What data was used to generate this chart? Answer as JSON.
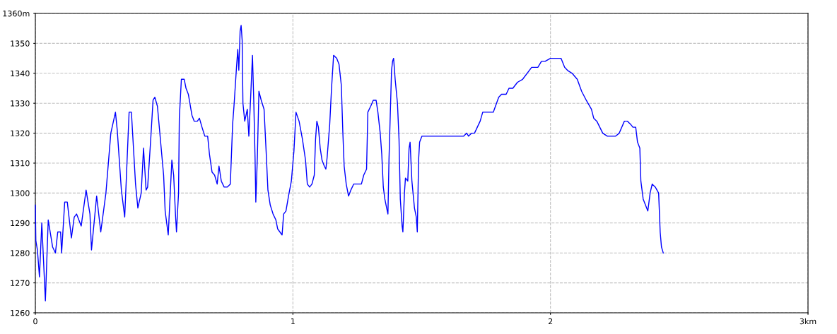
{
  "chart_data": {
    "type": "line",
    "xlim": [
      0,
      3
    ],
    "ylim": [
      1260,
      1360
    ],
    "xticks": [
      0,
      1,
      2,
      {
        "value": 3,
        "label": "3km"
      }
    ],
    "yticks": [
      1260,
      1270,
      1280,
      1290,
      1300,
      1310,
      1320,
      1330,
      1340,
      1350,
      {
        "value": 1360,
        "label": "1360m"
      }
    ],
    "grid": true,
    "marker": "none",
    "line_style": "solid",
    "series": [
      {
        "color": "#0000ff",
        "x": [
          0,
          0.002,
          0.008,
          0.016,
          0.025,
          0.039,
          0.05,
          0.067,
          0.078,
          0.087,
          0.098,
          0.102,
          0.114,
          0.124,
          0.14,
          0.151,
          0.16,
          0.178,
          0.197,
          0.212,
          0.218,
          0.238,
          0.254,
          0.274,
          0.293,
          0.311,
          0.318,
          0.334,
          0.347,
          0.364,
          0.373,
          0.389,
          0.398,
          0.411,
          0.42,
          0.43,
          0.436,
          0.448,
          0.457,
          0.464,
          0.474,
          0.498,
          0.504,
          0.516,
          0.53,
          0.537,
          0.544,
          0.548,
          0.556,
          0.559,
          0.567,
          0.578,
          0.585,
          0.594,
          0.608,
          0.617,
          0.629,
          0.637,
          0.647,
          0.658,
          0.669,
          0.676,
          0.686,
          0.696,
          0.706,
          0.713,
          0.722,
          0.733,
          0.745,
          0.757,
          0.766,
          0.772,
          0.781,
          0.786,
          0.79,
          0.795,
          0.799,
          0.803,
          0.806,
          0.813,
          0.818,
          0.823,
          0.829,
          0.836,
          0.843,
          0.848,
          0.853,
          0.856,
          0.862,
          0.868,
          0.877,
          0.888,
          0.896,
          0.903,
          0.912,
          0.923,
          0.934,
          0.941,
          0.958,
          0.964,
          0.973,
          0.983,
          0.994,
          1.004,
          1.012,
          1.024,
          1.037,
          1.049,
          1.056,
          1.065,
          1.074,
          1.083,
          1.088,
          1.093,
          1.099,
          1.106,
          1.113,
          1.122,
          1.128,
          1.133,
          1.143,
          1.15,
          1.158,
          1.17,
          1.179,
          1.188,
          1.194,
          1.199,
          1.207,
          1.216,
          1.225,
          1.236,
          1.266,
          1.275,
          1.286,
          1.291,
          1.302,
          1.312,
          1.323,
          1.33,
          1.339,
          1.345,
          1.351,
          1.357,
          1.364,
          1.369,
          1.373,
          1.378,
          1.383,
          1.387,
          1.391,
          1.397,
          1.406,
          1.412,
          1.417,
          1.424,
          1.427,
          1.433,
          1.437,
          1.446,
          1.451,
          1.455,
          1.462,
          1.472,
          1.479,
          1.483,
          1.488,
          1.492,
          1.501,
          1.513,
          1.663,
          1.675,
          1.682,
          1.694,
          1.705,
          1.727,
          1.737,
          1.778,
          1.799,
          1.81,
          1.828,
          1.839,
          1.854,
          1.872,
          1.892,
          1.927,
          1.938,
          1.951,
          1.965,
          1.979,
          2.0,
          2.013,
          2.027,
          2.041,
          2.055,
          2.066,
          2.084,
          2.104,
          2.121,
          2.139,
          2.159,
          2.168,
          2.18,
          2.203,
          2.221,
          2.253,
          2.267,
          2.287,
          2.299,
          2.311,
          2.32,
          2.331,
          2.338,
          2.347,
          2.351,
          2.36,
          2.378,
          2.387,
          2.395,
          2.407,
          2.42,
          2.426,
          2.431,
          2.438
        ],
        "values": [
          1296,
          1284,
          1281,
          1272,
          1290,
          1264,
          1291,
          1282,
          1280,
          1287,
          1287,
          1280,
          1297,
          1297,
          1285,
          1292,
          1293,
          1289,
          1301,
          1293,
          1281,
          1299,
          1287,
          1300,
          1320,
          1327,
          1321,
          1301,
          1292,
          1327,
          1327,
          1303,
          1295,
          1300,
          1315,
          1301,
          1302,
          1318,
          1331,
          1332,
          1329,
          1306,
          1294,
          1286,
          1311,
          1306,
          1293,
          1287,
          1300,
          1325,
          1338,
          1338,
          1335,
          1333,
          1326,
          1324,
          1324,
          1325,
          1322,
          1319,
          1319,
          1313,
          1307,
          1306,
          1303,
          1309,
          1304,
          1302,
          1302,
          1303,
          1323,
          1330,
          1342,
          1348,
          1341,
          1354,
          1356,
          1351,
          1330,
          1324,
          1326,
          1328,
          1319,
          1332,
          1346,
          1331,
          1312,
          1297,
          1312,
          1334,
          1331,
          1328,
          1314,
          1301,
          1296,
          1293,
          1291,
          1288,
          1286,
          1293,
          1294,
          1299,
          1304,
          1314,
          1327,
          1324,
          1318,
          1311,
          1303,
          1302,
          1303,
          1306,
          1318,
          1324,
          1322,
          1315,
          1311,
          1309,
          1308,
          1312,
          1323,
          1335,
          1346,
          1345,
          1343,
          1336,
          1320,
          1309,
          1303,
          1299,
          1301,
          1303,
          1303,
          1306,
          1308,
          1327,
          1329,
          1331,
          1331,
          1327,
          1320,
          1313,
          1302,
          1298,
          1295,
          1293,
          1311,
          1326,
          1341,
          1344,
          1345,
          1338,
          1330,
          1318,
          1298,
          1289,
          1287,
          1300,
          1305,
          1304,
          1315,
          1317,
          1304,
          1295,
          1292,
          1287,
          1311,
          1317,
          1319,
          1319,
          1319,
          1320,
          1319,
          1320,
          1320,
          1324,
          1327,
          1327,
          1332,
          1333,
          1333,
          1335,
          1335,
          1337,
          1338,
          1342,
          1342,
          1342,
          1344,
          1344,
          1345,
          1345,
          1345,
          1345,
          1342,
          1341,
          1340,
          1338,
          1334,
          1331,
          1328,
          1325,
          1324,
          1320,
          1319,
          1319,
          1320,
          1324,
          1324,
          1323,
          1322,
          1322,
          1317,
          1315,
          1304,
          1298,
          1294,
          1300,
          1303,
          1302,
          1300,
          1287,
          1282,
          1280
        ]
      }
    ]
  }
}
